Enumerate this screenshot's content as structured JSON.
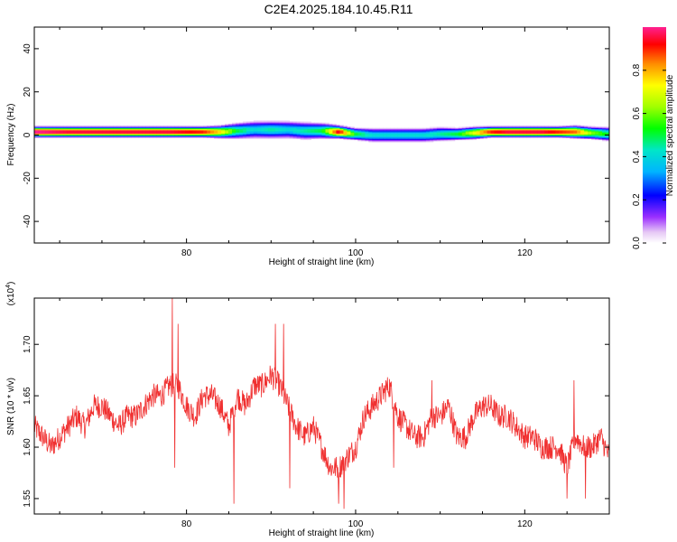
{
  "title": "C2E4.2025.184.10.45.R11",
  "colorbar": {
    "label": "Normalized spectral amplitude",
    "ticks": [
      "0.0",
      "0.2",
      "0.4",
      "0.6",
      "0.8"
    ],
    "tick_values": [
      0.0,
      0.2,
      0.4,
      0.6,
      0.8
    ]
  },
  "chart_data": [
    {
      "type": "heatmap",
      "xlabel": "Height of straight line (km)",
      "ylabel": "Frequency (Hz)",
      "xlim": [
        62,
        130
      ],
      "ylim": [
        -50,
        50
      ],
      "xticks": [
        80,
        100,
        120
      ],
      "yticks": [
        -40,
        -20,
        0,
        20,
        40
      ],
      "value_range": [
        0,
        1
      ],
      "description_of_band": "Narrow band centred near 1 Hz across all heights; strongest amplitude at 62-84 km, ~98 km and 114-130 km, broader weaker spread between 84 and 112 km",
      "band": {
        "x": [
          62,
          66,
          70,
          74,
          78,
          82,
          84,
          86,
          88,
          90,
          92,
          94,
          96,
          98,
          100,
          102,
          104,
          106,
          108,
          110,
          112,
          114,
          116,
          118,
          120,
          122,
          124,
          126,
          128,
          130
        ],
        "center_hz": [
          1.5,
          1.5,
          1.5,
          1.5,
          1.5,
          1.5,
          1.5,
          2,
          2.5,
          2.5,
          2.5,
          2,
          2,
          1.5,
          0.5,
          0,
          0,
          0,
          0,
          0.5,
          0.5,
          1,
          1.5,
          1.5,
          1.5,
          1.5,
          1.5,
          1.5,
          1,
          0.5
        ],
        "half_width_hz": [
          1.5,
          1.5,
          1.5,
          1.5,
          1.5,
          1.5,
          2,
          3,
          3.5,
          3.5,
          3.5,
          3.5,
          3,
          2,
          2,
          2.5,
          2.5,
          2.5,
          2.5,
          2.5,
          2,
          2,
          1.5,
          1.5,
          1.5,
          1.5,
          1.5,
          2,
          2,
          2.5
        ],
        "peak_amplitude": [
          1.0,
          0.95,
          0.95,
          0.95,
          0.95,
          0.9,
          0.75,
          0.5,
          0.4,
          0.45,
          0.4,
          0.45,
          0.5,
          0.95,
          0.5,
          0.4,
          0.4,
          0.4,
          0.4,
          0.45,
          0.5,
          0.7,
          0.9,
          0.95,
          0.95,
          0.95,
          0.9,
          0.85,
          0.6,
          0.5
        ]
      }
    },
    {
      "type": "line",
      "xlabel": "Height of straight line (km)",
      "ylabel": "SNR (10 * v/v)",
      "y_multiplier_label": "(x10",
      "y_multiplier_exp": "4",
      "y_multiplier_close": ")",
      "xlim": [
        62,
        130
      ],
      "ylim": [
        1.535,
        1.745
      ],
      "xticks": [
        80,
        100,
        120
      ],
      "yticks": [
        1.55,
        1.6,
        1.65,
        1.7
      ],
      "ytick_labels": [
        "1.55",
        "1.60",
        "1.65",
        "1.70"
      ],
      "series": [
        {
          "color": "#f03030",
          "x": [
            62,
            63,
            64,
            65,
            66,
            67,
            68,
            69,
            70,
            71,
            72,
            73,
            74,
            75,
            76,
            77,
            78,
            79,
            80,
            81,
            82,
            83,
            84,
            85,
            86,
            87,
            88,
            89,
            90,
            91,
            92,
            93,
            94,
            95,
            96,
            97,
            98,
            99,
            100,
            101,
            102,
            103,
            104,
            105,
            106,
            107,
            108,
            109,
            110,
            111,
            112,
            113,
            114,
            115,
            116,
            117,
            118,
            119,
            120,
            121,
            122,
            123,
            124,
            125,
            126,
            127,
            128,
            129,
            130
          ],
          "y": [
            1.62,
            1.61,
            1.6,
            1.61,
            1.62,
            1.63,
            1.62,
            1.64,
            1.64,
            1.63,
            1.62,
            1.63,
            1.63,
            1.64,
            1.65,
            1.65,
            1.66,
            1.66,
            1.64,
            1.63,
            1.65,
            1.65,
            1.64,
            1.62,
            1.65,
            1.64,
            1.66,
            1.66,
            1.67,
            1.66,
            1.64,
            1.62,
            1.61,
            1.62,
            1.6,
            1.58,
            1.58,
            1.59,
            1.6,
            1.63,
            1.64,
            1.65,
            1.66,
            1.63,
            1.62,
            1.61,
            1.61,
            1.63,
            1.63,
            1.64,
            1.61,
            1.61,
            1.63,
            1.64,
            1.64,
            1.63,
            1.63,
            1.62,
            1.61,
            1.61,
            1.6,
            1.6,
            1.6,
            1.58,
            1.61,
            1.6,
            1.6,
            1.61,
            1.59
          ],
          "noise_amplitude": 0.012,
          "spikes": [
            {
              "x": 78.3,
              "y": 1.745
            },
            {
              "x": 78.6,
              "y": 1.58
            },
            {
              "x": 79.0,
              "y": 1.72
            },
            {
              "x": 85.6,
              "y": 1.545
            },
            {
              "x": 90.5,
              "y": 1.72
            },
            {
              "x": 91.5,
              "y": 1.72
            },
            {
              "x": 92.2,
              "y": 1.56
            },
            {
              "x": 98.0,
              "y": 1.545
            },
            {
              "x": 98.6,
              "y": 1.54
            },
            {
              "x": 103.6,
              "y": 1.665
            },
            {
              "x": 109.0,
              "y": 1.665
            },
            {
              "x": 104.5,
              "y": 1.58
            },
            {
              "x": 125.8,
              "y": 1.665
            },
            {
              "x": 125.0,
              "y": 1.55
            },
            {
              "x": 127.2,
              "y": 1.55
            }
          ]
        }
      ]
    }
  ]
}
